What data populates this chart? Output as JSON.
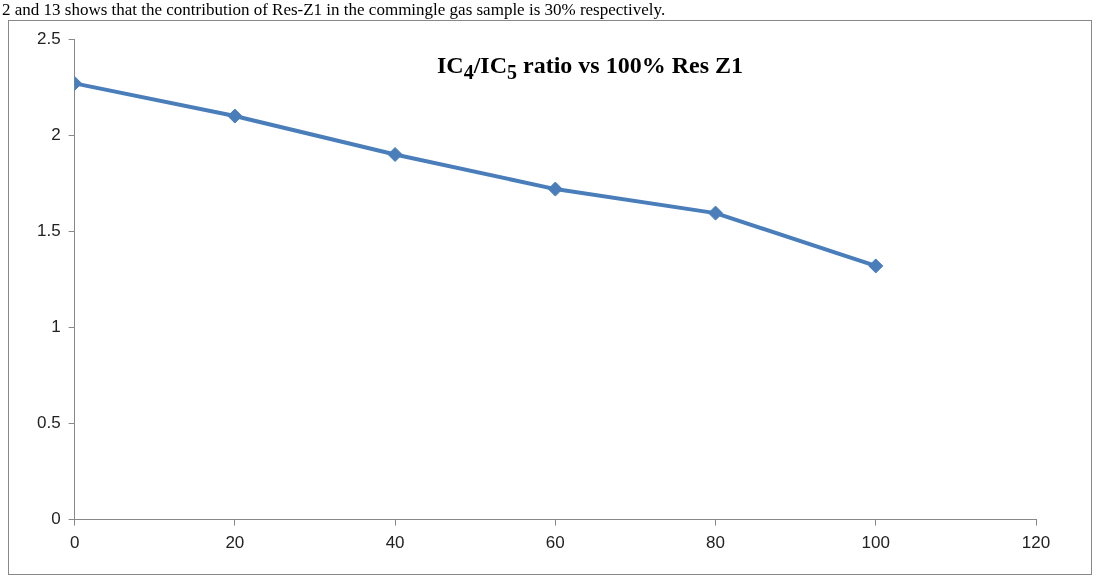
{
  "chart_data": {
    "type": "line",
    "title": "IC$_{4}$/IC$_{5}$ ratio vs 100% Res Z1",
    "annotations": [
      "2 and 13 shows that the contribution of Res-Z1 in the commingle gas sample is 30% respectively."
    ],
    "x": [
      0,
      20,
      40,
      60,
      80,
      100
    ],
    "series": [
      {
        "color": "#4a7ebb",
        "values": [
          2.27,
          2.1,
          1.9,
          1.72,
          1.595,
          1.32
        ]
      }
    ],
    "xlim": [
      0,
      120
    ],
    "xticks": [
      0,
      20,
      40,
      60,
      80,
      100,
      120
    ],
    "ylim": [
      0,
      2.5
    ],
    "yticks": [
      0,
      0.5,
      1,
      1.5,
      2,
      2.5
    ],
    "grid": false,
    "legend": false,
    "marker": "diamond",
    "line_style": "solid"
  }
}
